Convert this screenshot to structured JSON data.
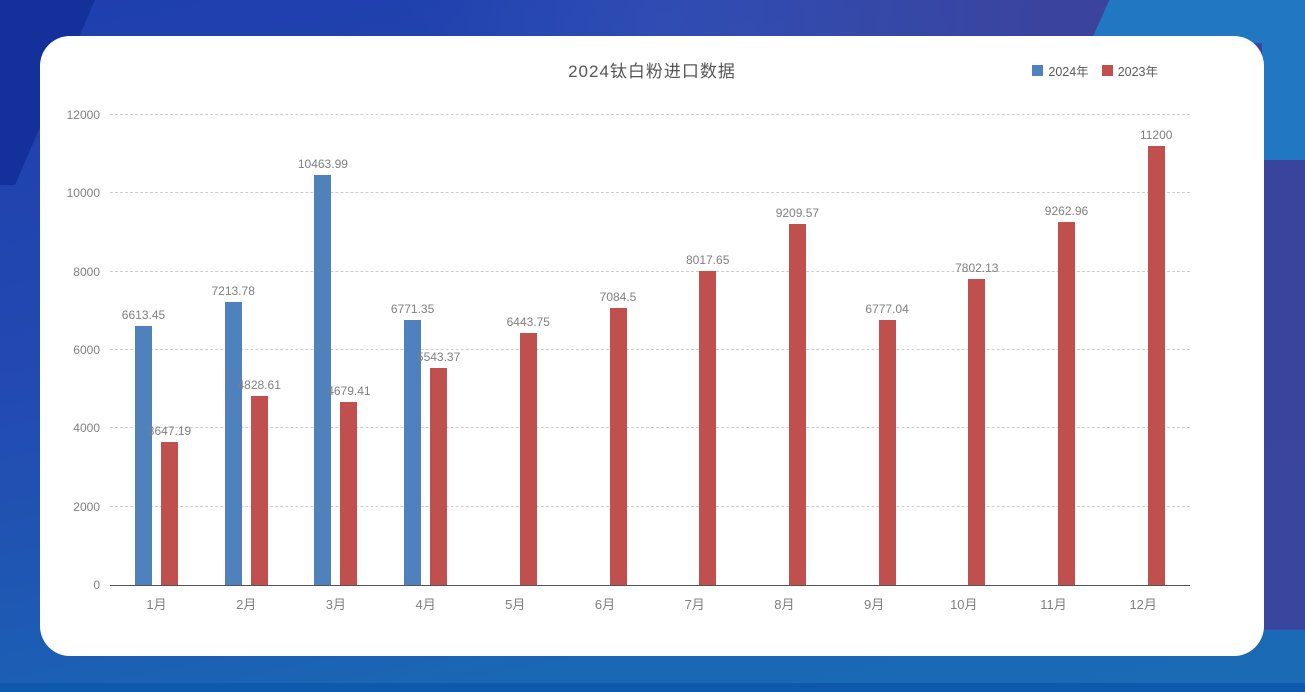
{
  "chart_data": {
    "type": "bar",
    "title": "2024钛白粉进口数据",
    "categories": [
      "1月",
      "2月",
      "3月",
      "4月",
      "5月",
      "6月",
      "7月",
      "8月",
      "9月",
      "10月",
      "11月",
      "12月"
    ],
    "series": [
      {
        "name": "2024年",
        "color": "#4f81bd",
        "values": [
          6613.45,
          7213.78,
          10463.99,
          6771.35,
          null,
          null,
          null,
          null,
          null,
          null,
          null,
          null
        ]
      },
      {
        "name": "2023年",
        "color": "#c0504d",
        "values": [
          3647.19,
          4828.61,
          4679.41,
          5543.37,
          6443.75,
          7084.5,
          8017.65,
          9209.57,
          6777.04,
          7802.13,
          9262.96,
          11200
        ]
      }
    ],
    "xlabel": "",
    "ylabel": "",
    "ylim": [
      0,
      12000
    ],
    "yticks": [
      0,
      2000,
      4000,
      6000,
      8000,
      10000,
      12000
    ],
    "grid": "dashed-horizontal",
    "legend_position": "top-right",
    "data_labels": true
  },
  "colors": {
    "series_2024": "#4f81bd",
    "series_2023": "#c0504d",
    "title_text": "#565656",
    "axis_text": "#7f7f7f",
    "gridline": "#cccccc",
    "card_background": "#ffffff",
    "page_background": "#1e3ead"
  }
}
